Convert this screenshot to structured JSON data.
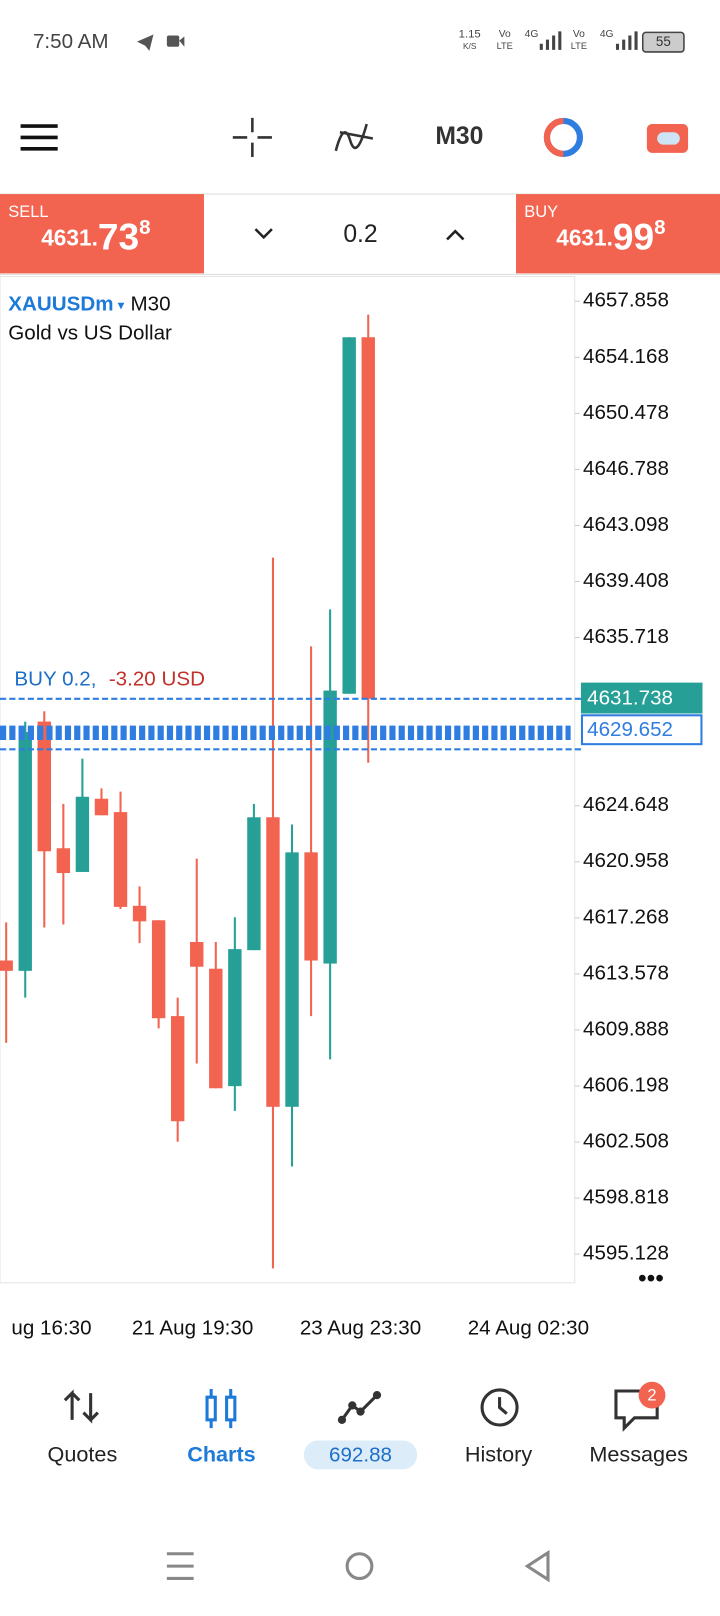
{
  "status_bar": {
    "time": "7:50 AM",
    "speed": "1.15",
    "speed_unit": "K/S",
    "signal_labels": [
      "Vo",
      "LTE",
      "4G",
      "Vo",
      "LTE",
      "4G"
    ],
    "battery": "55"
  },
  "toolbar": {
    "timeframe": "M30"
  },
  "trade_panel": {
    "sell_label": "SELL",
    "sell_price_head": "4631.",
    "sell_price_big": "73",
    "sell_price_sup": "8",
    "lot": "0.2",
    "buy_label": "BUY",
    "buy_price_head": "4631.",
    "buy_price_big": "99",
    "buy_price_sup": "8"
  },
  "chart_data": {
    "type": "candlestick",
    "symbol": "XAUUSDm",
    "timeframe": "M30",
    "description": "Gold vs US Dollar",
    "up_color": "#26a096",
    "down_color": "#f26350",
    "ylim": [
      4593.24,
      4659.49
    ],
    "yticks": [
      4657.858,
      4654.168,
      4650.478,
      4646.788,
      4643.098,
      4639.408,
      4635.718,
      4624.648,
      4620.958,
      4617.268,
      4613.578,
      4609.888,
      4606.198,
      4602.508,
      4598.818,
      4595.128
    ],
    "x_labels": [
      "ug 16:30",
      "21 Aug 19:30",
      "23 Aug 23:30",
      "24 Aug 02:30"
    ],
    "candles": [
      {
        "open": 4614.46,
        "high": 4616.97,
        "low": 4609.04,
        "close": 4613.78
      },
      {
        "open": 4613.78,
        "high": 4630.19,
        "low": 4612.02,
        "close": 4629.51
      },
      {
        "open": 4630.19,
        "high": 4630.87,
        "low": 4616.63,
        "close": 4621.65
      },
      {
        "open": 4621.85,
        "high": 4624.77,
        "low": 4616.83,
        "close": 4620.22
      },
      {
        "open": 4620.29,
        "high": 4627.75,
        "low": 4620.29,
        "close": 4625.24
      },
      {
        "open": 4625.11,
        "high": 4625.79,
        "low": 4624.02,
        "close": 4624.02
      },
      {
        "open": 4624.23,
        "high": 4625.58,
        "low": 4617.85,
        "close": 4617.99
      },
      {
        "open": 4618.06,
        "high": 4619.34,
        "low": 4615.61,
        "close": 4617.04
      },
      {
        "open": 4617.11,
        "high": 4617.11,
        "low": 4609.99,
        "close": 4610.66
      },
      {
        "open": 4610.8,
        "high": 4612.02,
        "low": 4602.53,
        "close": 4603.88
      },
      {
        "open": 4615.68,
        "high": 4621.17,
        "low": 4607.68,
        "close": 4614.05
      },
      {
        "open": 4613.92,
        "high": 4615.68,
        "low": 4606.05,
        "close": 4606.05
      },
      {
        "open": 4606.19,
        "high": 4617.31,
        "low": 4604.56,
        "close": 4615.21
      },
      {
        "open": 4615.14,
        "high": 4624.77,
        "low": 4615.14,
        "close": 4623.89
      },
      {
        "open": 4623.89,
        "high": 4640.98,
        "low": 4594.19,
        "close": 4604.83
      },
      {
        "open": 4604.83,
        "high": 4623.41,
        "low": 4600.9,
        "close": 4621.58
      },
      {
        "open": 4621.58,
        "high": 4635.14,
        "low": 4610.8,
        "close": 4614.46
      },
      {
        "open": 4614.26,
        "high": 4637.58,
        "low": 4607.95,
        "close": 4632.23
      },
      {
        "open": 4632.02,
        "high": 4655.49,
        "low": 4632.02,
        "close": 4655.49
      },
      {
        "open": 4655.49,
        "high": 4656.98,
        "low": 4627.48,
        "close": 4631.69
      }
    ],
    "position_label": "BUY 0.2,",
    "position_pl": "-3.20 USD",
    "price_tags": [
      {
        "value": 4631.738,
        "color": "#26a096"
      },
      {
        "value": 4629.652,
        "color": "#2f7de1"
      }
    ]
  },
  "nav": {
    "items": [
      "Quotes",
      "Charts",
      "History",
      "Messages"
    ],
    "balance": "692.88",
    "badge": "2"
  }
}
